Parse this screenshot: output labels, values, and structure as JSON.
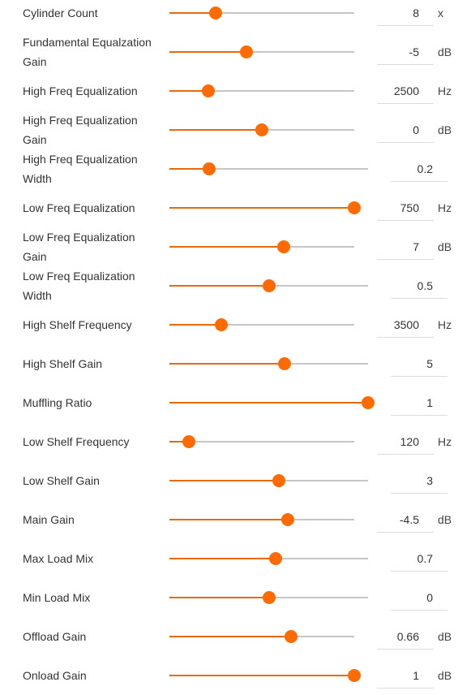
{
  "controls": [
    {
      "label": "Cylinder Count",
      "value": "8",
      "unit": "x",
      "fraction": 0.25
    },
    {
      "label": "Fundamental Equalzation Gain",
      "value": "-5",
      "unit": "dB",
      "fraction": 0.415
    },
    {
      "label": "High Freq Equalization",
      "value": "2500",
      "unit": "Hz",
      "fraction": 0.21
    },
    {
      "label": "High Freq Equalization Gain",
      "value": "0",
      "unit": "dB",
      "fraction": 0.5
    },
    {
      "label": "High Freq Equalization Width",
      "value": "0.2",
      "unit": "",
      "fraction": 0.2
    },
    {
      "label": "Low Freq Equalization",
      "value": "750",
      "unit": "Hz",
      "fraction": 1.0
    },
    {
      "label": "Low Freq Equalization Gain",
      "value": "7",
      "unit": "dB",
      "fraction": 0.62
    },
    {
      "label": "Low Freq Equalization Width",
      "value": "0.5",
      "unit": "",
      "fraction": 0.5
    },
    {
      "label": "High Shelf Frequency",
      "value": "3500",
      "unit": "Hz",
      "fraction": 0.28
    },
    {
      "label": "High Shelf Gain",
      "value": "5",
      "unit": "",
      "fraction": 0.58
    },
    {
      "label": "Muffling Ratio",
      "value": "1",
      "unit": "",
      "fraction": 1.0
    },
    {
      "label": "Low Shelf Frequency",
      "value": "120",
      "unit": "Hz",
      "fraction": 0.105
    },
    {
      "label": "Low Shelf Gain",
      "value": "3",
      "unit": "",
      "fraction": 0.55
    },
    {
      "label": "Main Gain",
      "value": "-4.5",
      "unit": "dB",
      "fraction": 0.64
    },
    {
      "label": "Max Load Mix",
      "value": "0.7",
      "unit": "",
      "fraction": 0.535
    },
    {
      "label": "Min Load Mix",
      "value": "0",
      "unit": "",
      "fraction": 0.5
    },
    {
      "label": "Offload Gain",
      "value": "0.66",
      "unit": "dB",
      "fraction": 0.66
    },
    {
      "label": "Onload Gain",
      "value": "1",
      "unit": "dB",
      "fraction": 1.0
    }
  ],
  "colors": {
    "accent": "#ff6b00",
    "fill": "#e96a0c",
    "track": "#c6c6c6"
  }
}
